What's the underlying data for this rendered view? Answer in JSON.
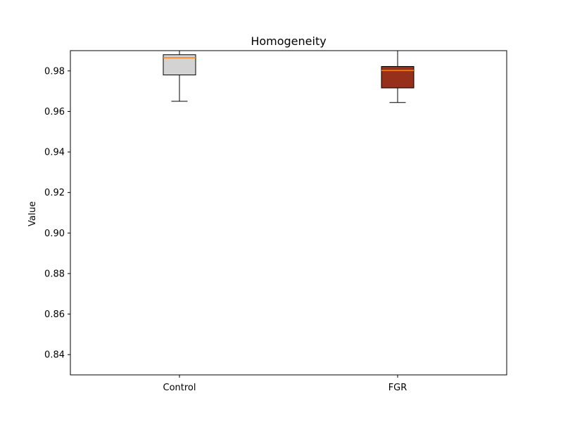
{
  "chart_data": {
    "type": "box",
    "title": "Homogeneity",
    "xlabel": "",
    "ylabel": "Value",
    "ylim": [
      0.83,
      0.99
    ],
    "yticks": [
      0.84,
      0.86,
      0.88,
      0.9,
      0.92,
      0.94,
      0.96,
      0.98
    ],
    "ytick_labels": [
      "0.84",
      "0.86",
      "0.88",
      "0.90",
      "0.92",
      "0.94",
      "0.96",
      "0.98"
    ],
    "grid": false,
    "categories": [
      "Control",
      "FGR"
    ],
    "boxes": [
      {
        "category": "Control",
        "whisker_low": 0.965,
        "q1": 0.978,
        "median": 0.9865,
        "q3": 0.988,
        "whisker_high": 0.99,
        "fill_color": "#d3d3d3",
        "median_color": "#ff7f0e"
      },
      {
        "category": "FGR",
        "whisker_low": 0.9644,
        "q1": 0.9716,
        "median": 0.9802,
        "q3": 0.9822,
        "whisker_high": 0.99,
        "fill_color": "#96301a",
        "median_color": "#ff7f0e"
      }
    ]
  }
}
